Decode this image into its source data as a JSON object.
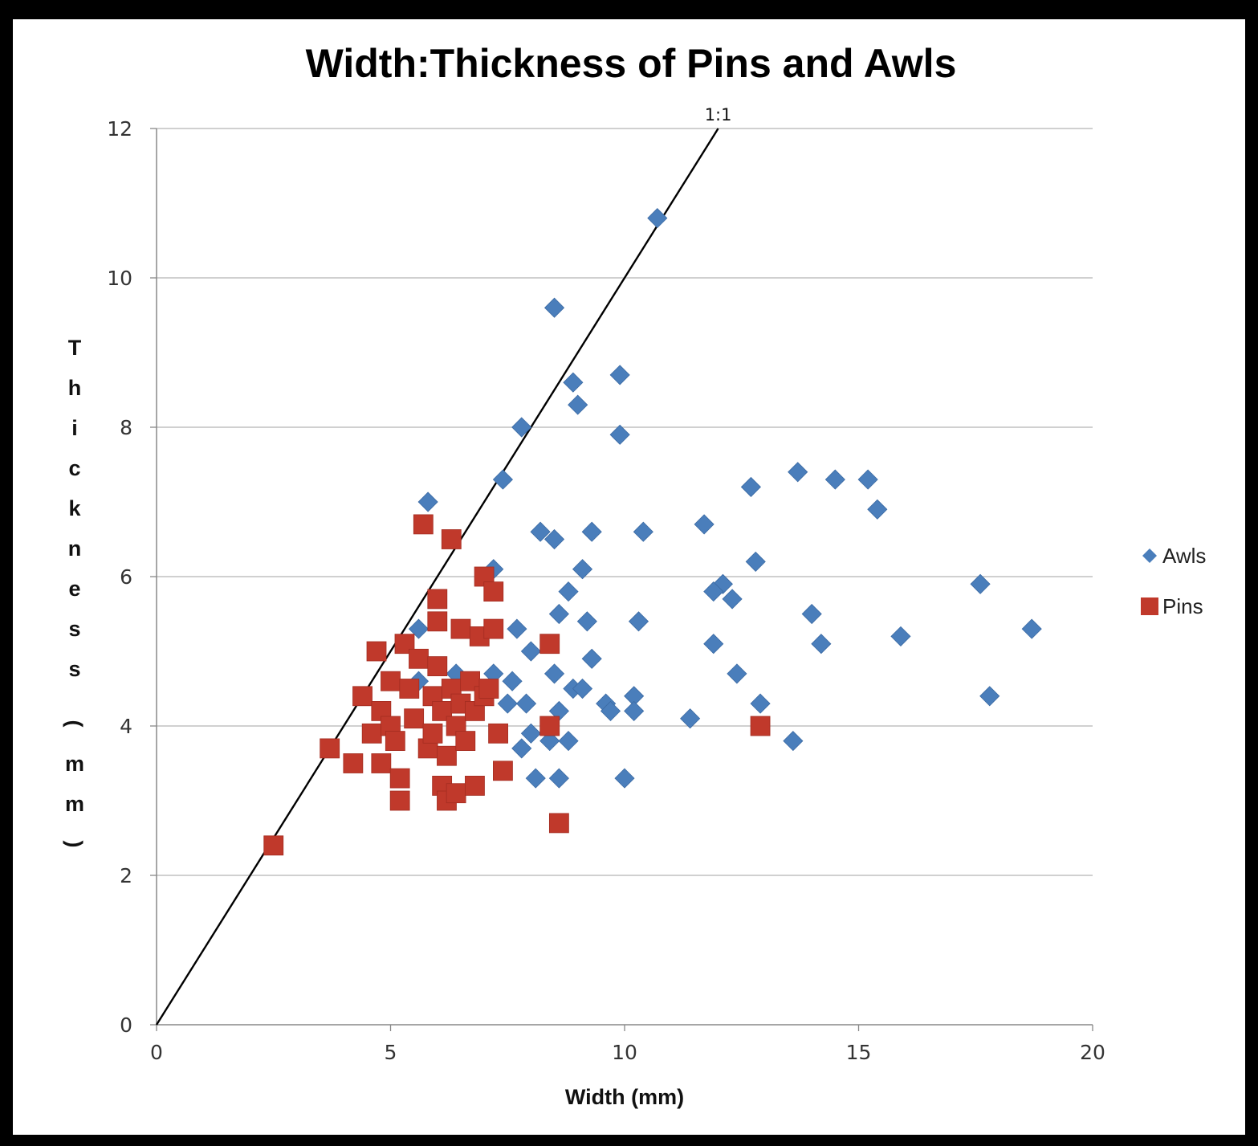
{
  "chart_data": {
    "type": "scatter",
    "title": "Width:Thickness of Pins and Awls",
    "xlabel": "Width (mm)",
    "ylabel": "Thickness (mm)",
    "xlim": [
      0,
      20
    ],
    "ylim": [
      0,
      12
    ],
    "x_ticks": [
      "0",
      "5",
      "10",
      "15",
      "20"
    ],
    "y_ticks": [
      "0",
      "2",
      "4",
      "6",
      "8",
      "10",
      "12"
    ],
    "grid": "horizontal",
    "legend_position": "right",
    "reference_line": {
      "label": "1:1",
      "slope": 1
    },
    "series": [
      {
        "name": "Awls",
        "marker": "diamond",
        "color": "#4a7ebb",
        "points": [
          [
            10.7,
            10.8
          ],
          [
            8.5,
            9.6
          ],
          [
            9.9,
            8.7
          ],
          [
            8.9,
            8.6
          ],
          [
            9.0,
            8.3
          ],
          [
            7.8,
            8.0
          ],
          [
            9.9,
            7.9
          ],
          [
            7.4,
            7.3
          ],
          [
            13.7,
            7.4
          ],
          [
            14.5,
            7.3
          ],
          [
            15.2,
            7.3
          ],
          [
            12.7,
            7.2
          ],
          [
            5.8,
            7.0
          ],
          [
            15.4,
            6.9
          ],
          [
            11.7,
            6.7
          ],
          [
            8.2,
            6.6
          ],
          [
            9.3,
            6.6
          ],
          [
            10.4,
            6.6
          ],
          [
            8.5,
            6.5
          ],
          [
            12.8,
            6.2
          ],
          [
            7.2,
            6.1
          ],
          [
            9.1,
            6.1
          ],
          [
            17.6,
            5.9
          ],
          [
            12.1,
            5.9
          ],
          [
            11.9,
            5.8
          ],
          [
            8.8,
            5.8
          ],
          [
            12.3,
            5.7
          ],
          [
            8.6,
            5.5
          ],
          [
            14.0,
            5.5
          ],
          [
            5.6,
            5.3
          ],
          [
            7.7,
            5.3
          ],
          [
            9.2,
            5.4
          ],
          [
            10.3,
            5.4
          ],
          [
            18.7,
            5.3
          ],
          [
            15.9,
            5.2
          ],
          [
            11.9,
            5.1
          ],
          [
            14.2,
            5.1
          ],
          [
            8.0,
            5.0
          ],
          [
            9.3,
            4.9
          ],
          [
            6.4,
            4.7
          ],
          [
            7.2,
            4.7
          ],
          [
            8.5,
            4.7
          ],
          [
            12.4,
            4.7
          ],
          [
            5.6,
            4.6
          ],
          [
            7.6,
            4.6
          ],
          [
            8.9,
            4.5
          ],
          [
            9.1,
            4.5
          ],
          [
            10.2,
            4.4
          ],
          [
            17.8,
            4.4
          ],
          [
            7.5,
            4.3
          ],
          [
            7.9,
            4.3
          ],
          [
            9.6,
            4.3
          ],
          [
            12.9,
            4.3
          ],
          [
            8.6,
            4.2
          ],
          [
            9.7,
            4.2
          ],
          [
            10.2,
            4.2
          ],
          [
            11.4,
            4.1
          ],
          [
            8.0,
            3.9
          ],
          [
            8.4,
            3.8
          ],
          [
            8.8,
            3.8
          ],
          [
            13.6,
            3.8
          ],
          [
            7.8,
            3.7
          ],
          [
            8.1,
            3.3
          ],
          [
            8.6,
            3.3
          ],
          [
            10.0,
            3.3
          ]
        ]
      },
      {
        "name": "Pins",
        "marker": "square",
        "color": "#c0392b",
        "points": [
          [
            2.5,
            2.4
          ],
          [
            3.7,
            3.7
          ],
          [
            4.2,
            3.5
          ],
          [
            4.4,
            4.4
          ],
          [
            4.6,
            3.9
          ],
          [
            4.7,
            5.0
          ],
          [
            4.8,
            3.5
          ],
          [
            4.8,
            4.2
          ],
          [
            5.0,
            4.6
          ],
          [
            5.0,
            4.0
          ],
          [
            5.1,
            3.8
          ],
          [
            5.2,
            3.3
          ],
          [
            5.2,
            3.0
          ],
          [
            5.3,
            5.1
          ],
          [
            5.4,
            4.5
          ],
          [
            5.5,
            4.1
          ],
          [
            5.6,
            4.9
          ],
          [
            5.7,
            6.7
          ],
          [
            5.8,
            3.7
          ],
          [
            5.9,
            4.4
          ],
          [
            5.9,
            3.9
          ],
          [
            6.0,
            5.7
          ],
          [
            6.0,
            5.4
          ],
          [
            6.0,
            4.8
          ],
          [
            6.1,
            4.2
          ],
          [
            6.1,
            3.2
          ],
          [
            6.2,
            3.6
          ],
          [
            6.2,
            3.0
          ],
          [
            6.3,
            6.5
          ],
          [
            6.3,
            4.5
          ],
          [
            6.4,
            4.0
          ],
          [
            6.4,
            3.1
          ],
          [
            6.5,
            5.3
          ],
          [
            6.5,
            4.3
          ],
          [
            6.6,
            3.8
          ],
          [
            6.7,
            4.6
          ],
          [
            6.8,
            4.2
          ],
          [
            6.8,
            3.2
          ],
          [
            6.9,
            5.2
          ],
          [
            7.0,
            6.0
          ],
          [
            7.0,
            4.4
          ],
          [
            7.1,
            4.5
          ],
          [
            7.2,
            5.8
          ],
          [
            7.2,
            5.3
          ],
          [
            7.3,
            3.9
          ],
          [
            7.4,
            3.4
          ],
          [
            8.4,
            5.1
          ],
          [
            8.4,
            4.0
          ],
          [
            8.6,
            2.7
          ],
          [
            12.9,
            4.0
          ]
        ]
      }
    ]
  }
}
